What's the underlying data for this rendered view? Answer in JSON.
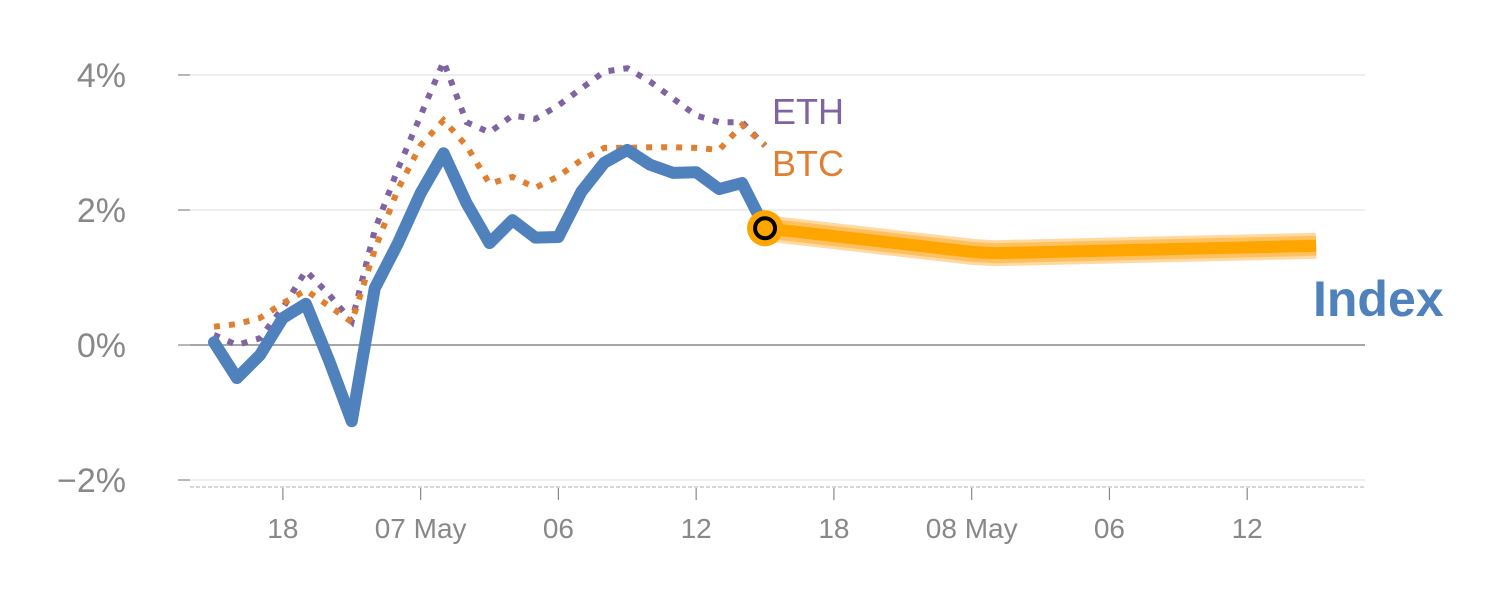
{
  "chart_data": {
    "type": "line",
    "title": "",
    "xlabel": "",
    "ylabel": "",
    "ylim": [
      -2,
      4
    ],
    "xlim": [
      0,
      48
    ],
    "grid": true,
    "y_ticks": [
      {
        "value": -2,
        "label": "−2%"
      },
      {
        "value": 0,
        "label": "0%"
      },
      {
        "value": 2,
        "label": "2%"
      },
      {
        "value": 4,
        "label": "4%"
      }
    ],
    "x_ticks": [
      {
        "value": 3,
        "label": "18"
      },
      {
        "value": 9,
        "label": "07 May"
      },
      {
        "value": 15,
        "label": "06"
      },
      {
        "value": 21,
        "label": "12"
      },
      {
        "value": 27,
        "label": "18"
      },
      {
        "value": 33,
        "label": "08 May"
      },
      {
        "value": 39,
        "label": "06"
      },
      {
        "value": 45,
        "label": "12"
      }
    ],
    "series": [
      {
        "name": "ETH",
        "style": "dotted",
        "color": "#8064a2",
        "x": [
          0,
          1,
          2,
          3,
          4,
          5,
          6,
          7,
          8,
          9,
          10,
          11,
          12,
          13,
          14,
          15,
          16,
          17,
          18,
          19,
          20,
          21,
          22,
          23,
          24
        ],
        "values": [
          0.15,
          0.0,
          0.1,
          0.55,
          1.1,
          0.75,
          0.35,
          1.7,
          2.6,
          3.4,
          4.2,
          3.3,
          3.15,
          3.4,
          3.35,
          3.55,
          3.8,
          4.05,
          4.1,
          3.9,
          3.65,
          3.4,
          3.3,
          3.3,
          2.95
        ]
      },
      {
        "name": "BTC",
        "style": "dotted",
        "color": "#e07f30",
        "x": [
          0,
          1,
          2,
          3,
          4,
          5,
          6,
          7,
          8,
          9,
          10,
          11,
          12,
          13,
          14,
          15,
          16,
          17,
          18,
          19,
          20,
          21,
          22,
          23,
          24
        ],
        "values": [
          0.27,
          0.31,
          0.4,
          0.62,
          0.81,
          0.58,
          0.34,
          1.41,
          2.3,
          2.96,
          3.33,
          2.95,
          2.39,
          2.49,
          2.33,
          2.5,
          2.74,
          2.92,
          2.92,
          2.93,
          2.93,
          2.92,
          2.89,
          3.26,
          2.96
        ]
      },
      {
        "name": "Index",
        "style": "solid",
        "color": "#4f81bd",
        "x": [
          0,
          1,
          2,
          3,
          4,
          5,
          6,
          7,
          8,
          9,
          10,
          11,
          12,
          13,
          14,
          15,
          16,
          17,
          18,
          19,
          20,
          21,
          22,
          23,
          24
        ],
        "values": [
          0.04,
          -0.49,
          -0.15,
          0.4,
          0.61,
          -0.22,
          -1.13,
          0.84,
          1.5,
          2.25,
          2.84,
          2.1,
          1.51,
          1.85,
          1.59,
          1.6,
          2.27,
          2.7,
          2.89,
          2.67,
          2.55,
          2.56,
          2.31,
          2.4,
          1.73
        ]
      },
      {
        "name": "Index forecast",
        "style": "band",
        "color": "#ffa500",
        "x": [
          24,
          33,
          34,
          48
        ],
        "values": [
          1.73,
          1.38,
          1.36,
          1.47
        ]
      }
    ],
    "labels": {
      "eth": "ETH",
      "btc": "BTC",
      "index": "Index"
    }
  }
}
